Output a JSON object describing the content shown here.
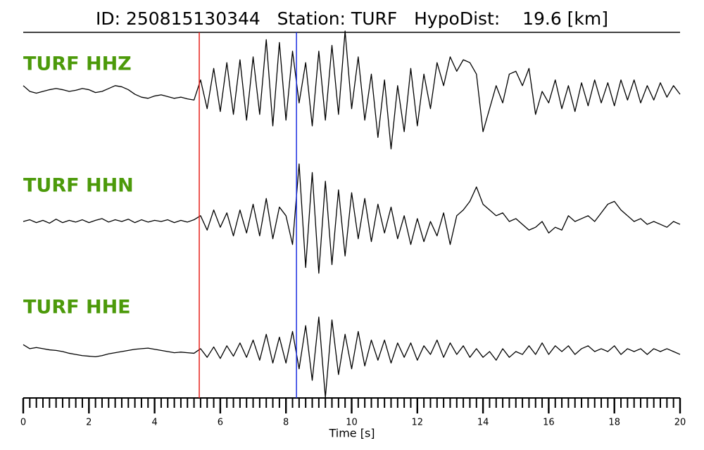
{
  "chart_data": {
    "type": "seismogram",
    "title": "ID: 250815130344   Station: TURF   HypoDist:    19.6 [km]",
    "xlabel": "Time [s]",
    "xlim": [
      0,
      20
    ],
    "xticks": [
      0,
      2,
      4,
      6,
      8,
      10,
      12,
      14,
      16,
      18,
      20
    ],
    "xticks_minor": [
      0.2,
      0.4,
      0.6,
      0.8,
      1,
      1.2,
      1.4,
      1.6,
      1.8,
      2.2,
      2.4,
      2.6,
      2.8,
      3,
      3.2,
      3.4,
      3.6,
      3.8,
      4.2,
      4.4,
      4.6,
      4.8,
      5,
      5.2,
      5.4,
      5.6,
      5.8,
      6.2,
      6.4,
      6.6,
      6.8,
      7,
      7.2,
      7.4,
      7.6,
      7.8,
      8.2,
      8.4,
      8.6,
      8.8,
      9,
      9.2,
      9.4,
      9.6,
      9.8,
      10.2,
      10.4,
      10.6,
      10.8,
      11,
      11.2,
      11.4,
      11.6,
      11.8,
      12.2,
      12.4,
      12.6,
      12.8,
      13,
      13.2,
      13.4,
      13.6,
      13.8,
      14.2,
      14.4,
      14.6,
      14.8,
      15,
      15.2,
      15.4,
      15.6,
      15.8,
      16.2,
      16.4,
      16.6,
      16.8,
      17,
      17.2,
      17.4,
      17.6,
      17.8,
      18.2,
      18.4,
      18.6,
      18.8,
      19,
      19.2,
      19.4,
      19.6,
      19.8
    ],
    "ylim": [
      -1.1,
      1.1
    ],
    "label_color": "#4c9a0a",
    "picks": [
      {
        "time": 5.36,
        "color": "#e8211c"
      },
      {
        "time": 8.32,
        "color": "#1a2ee0"
      }
    ],
    "x": [
      0,
      0.2,
      0.4,
      0.6,
      0.8,
      1,
      1.2,
      1.4,
      1.6,
      1.8,
      2,
      2.2,
      2.4,
      2.6,
      2.8,
      3,
      3.2,
      3.4,
      3.6,
      3.8,
      4,
      4.2,
      4.4,
      4.6,
      4.8,
      5,
      5.2,
      5.4,
      5.6,
      5.8,
      6,
      6.2,
      6.4,
      6.6,
      6.8,
      7,
      7.2,
      7.4,
      7.6,
      7.8,
      8,
      8.2,
      8.4,
      8.6,
      8.8,
      9,
      9.2,
      9.4,
      9.6,
      9.8,
      10,
      10.2,
      10.4,
      10.6,
      10.8,
      11,
      11.2,
      11.4,
      11.6,
      11.8,
      12,
      12.2,
      12.4,
      12.6,
      12.8,
      13,
      13.2,
      13.4,
      13.6,
      13.8,
      14,
      14.2,
      14.4,
      14.6,
      14.8,
      15,
      15.2,
      15.4,
      15.6,
      15.8,
      16,
      16.2,
      16.4,
      16.6,
      16.8,
      17,
      17.2,
      17.4,
      17.6,
      17.8,
      18,
      18.2,
      18.4,
      18.6,
      18.8,
      19,
      19.2,
      19.4,
      19.6,
      19.8,
      20
    ],
    "series": [
      {
        "name": "TURF HHZ",
        "color": "#000000",
        "values": [
          0.1,
          0.0,
          -0.03,
          0.0,
          0.03,
          0.05,
          0.03,
          0.0,
          0.02,
          0.05,
          0.03,
          -0.02,
          0.0,
          0.05,
          0.1,
          0.08,
          0.03,
          -0.05,
          -0.1,
          -0.12,
          -0.08,
          -0.06,
          -0.09,
          -0.12,
          -0.1,
          -0.13,
          -0.15,
          0.2,
          -0.3,
          0.4,
          -0.35,
          0.5,
          -0.4,
          0.55,
          -0.5,
          0.6,
          -0.4,
          0.9,
          -0.6,
          0.85,
          -0.5,
          0.7,
          -0.2,
          0.5,
          -0.6,
          0.7,
          -0.5,
          0.8,
          -0.4,
          1.05,
          -0.3,
          0.6,
          -0.5,
          0.3,
          -0.8,
          0.2,
          -1.0,
          0.1,
          -0.7,
          0.4,
          -0.6,
          0.3,
          -0.3,
          0.5,
          0.1,
          0.6,
          0.35,
          0.55,
          0.5,
          0.3,
          -0.7,
          -0.3,
          0.1,
          -0.2,
          0.3,
          0.35,
          0.1,
          0.4,
          -0.4,
          0.0,
          -0.2,
          0.2,
          -0.3,
          0.1,
          -0.35,
          0.15,
          -0.25,
          0.2,
          -0.2,
          0.15,
          -0.25,
          0.2,
          -0.15,
          0.2,
          -0.2,
          0.1,
          -0.15,
          0.15,
          -0.1,
          0.1,
          -0.05
        ]
      },
      {
        "name": "TURF HHN",
        "color": "#000000",
        "values": [
          0.0,
          0.03,
          -0.02,
          0.02,
          -0.03,
          0.04,
          -0.02,
          0.02,
          -0.01,
          0.03,
          -0.02,
          0.02,
          0.05,
          -0.01,
          0.03,
          0.0,
          0.04,
          -0.02,
          0.03,
          -0.01,
          0.02,
          0.0,
          0.03,
          -0.02,
          0.02,
          -0.01,
          0.03,
          0.1,
          -0.15,
          0.2,
          -0.1,
          0.15,
          -0.25,
          0.2,
          -0.2,
          0.3,
          -0.25,
          0.4,
          -0.3,
          0.25,
          0.1,
          -0.4,
          1.0,
          -0.8,
          0.85,
          -0.9,
          0.7,
          -0.75,
          0.55,
          -0.6,
          0.5,
          -0.3,
          0.4,
          -0.35,
          0.3,
          -0.2,
          0.25,
          -0.3,
          0.1,
          -0.4,
          0.05,
          -0.35,
          0.0,
          -0.25,
          0.15,
          -0.4,
          0.1,
          0.2,
          0.35,
          0.6,
          0.3,
          0.2,
          0.1,
          0.15,
          0.0,
          0.05,
          -0.05,
          -0.15,
          -0.1,
          0.0,
          -0.2,
          -0.1,
          -0.15,
          0.1,
          0.0,
          0.05,
          0.1,
          0.0,
          0.15,
          0.3,
          0.35,
          0.2,
          0.1,
          0.0,
          0.05,
          -0.05,
          0.0,
          -0.05,
          -0.1,
          0.0,
          -0.05
        ]
      },
      {
        "name": "TURF HHE",
        "color": "#000000",
        "values": [
          0.12,
          0.05,
          0.07,
          0.05,
          0.03,
          0.02,
          0.0,
          -0.03,
          -0.05,
          -0.07,
          -0.08,
          -0.09,
          -0.07,
          -0.04,
          -0.02,
          0.0,
          0.02,
          0.04,
          0.05,
          0.06,
          0.04,
          0.02,
          0.0,
          -0.02,
          -0.01,
          -0.02,
          -0.03,
          0.05,
          -0.1,
          0.08,
          -0.12,
          0.1,
          -0.08,
          0.15,
          -0.1,
          0.2,
          -0.15,
          0.3,
          -0.2,
          0.25,
          -0.2,
          0.35,
          -0.3,
          0.45,
          -0.5,
          0.6,
          -0.8,
          0.55,
          -0.4,
          0.3,
          -0.3,
          0.35,
          -0.25,
          0.2,
          -0.15,
          0.2,
          -0.2,
          0.15,
          -0.1,
          0.15,
          -0.15,
          0.1,
          -0.05,
          0.2,
          -0.1,
          0.15,
          -0.05,
          0.1,
          -0.1,
          0.05,
          -0.1,
          0.0,
          -0.15,
          0.05,
          -0.1,
          0.0,
          -0.05,
          0.1,
          -0.05,
          0.15,
          -0.05,
          0.1,
          0.0,
          0.1,
          -0.05,
          0.05,
          0.1,
          0.0,
          0.05,
          0.0,
          0.1,
          -0.05,
          0.05,
          0.0,
          0.05,
          -0.05,
          0.05,
          0.0,
          0.05,
          0.0,
          -0.05
        ]
      }
    ]
  }
}
